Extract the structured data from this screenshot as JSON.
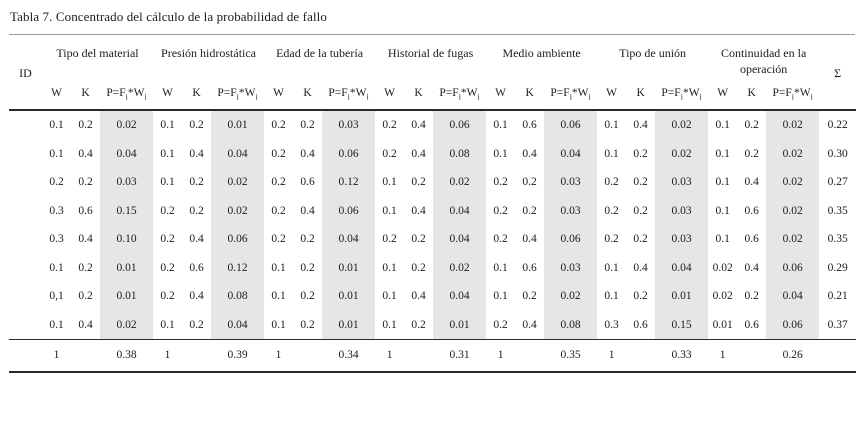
{
  "title": "Tabla 7. Concentrado del cálculo de la probabilidad de fallo",
  "table": {
    "id_header": "ID",
    "sum_header": "Σ",
    "sub_w": "W",
    "sub_k": "K",
    "p_label_parts": [
      "P=F",
      "i",
      "*W",
      "i"
    ],
    "groups": [
      "Tipo del material",
      "Presión hidrostática",
      "Edad de la tubería",
      "Historial de fugas",
      "Medio ambiente",
      "Tipo de unión",
      "Continuidad en la operación"
    ],
    "rows": [
      {
        "groups": [
          [
            "0.1",
            "0.2",
            "0.02"
          ],
          [
            "0.1",
            "0.2",
            "0.01"
          ],
          [
            "0.2",
            "0.2",
            "0.03"
          ],
          [
            "0.2",
            "0.4",
            "0.06"
          ],
          [
            "0.1",
            "0.6",
            "0.06"
          ],
          [
            "0.1",
            "0.4",
            "0.02"
          ],
          [
            "0.1",
            "0.2",
            "0.02"
          ]
        ],
        "sum": "0.22"
      },
      {
        "groups": [
          [
            "0.1",
            "0.4",
            "0.04"
          ],
          [
            "0.1",
            "0.4",
            "0.04"
          ],
          [
            "0.2",
            "0.4",
            "0.06"
          ],
          [
            "0.2",
            "0.4",
            "0.08"
          ],
          [
            "0.1",
            "0.4",
            "0.04"
          ],
          [
            "0.1",
            "0.2",
            "0.02"
          ],
          [
            "0.1",
            "0.2",
            "0.02"
          ]
        ],
        "sum": "0.30"
      },
      {
        "groups": [
          [
            "0.2",
            "0.2",
            "0.03"
          ],
          [
            "0.1",
            "0.2",
            "0.02"
          ],
          [
            "0.2",
            "0.6",
            "0.12"
          ],
          [
            "0.1",
            "0.2",
            "0.02"
          ],
          [
            "0.2",
            "0.2",
            "0.03"
          ],
          [
            "0.2",
            "0.2",
            "0.03"
          ],
          [
            "0.1",
            "0.4",
            "0.02"
          ]
        ],
        "sum": "0.27"
      },
      {
        "groups": [
          [
            "0.3",
            "0.6",
            "0.15"
          ],
          [
            "0.2",
            "0.2",
            "0.02"
          ],
          [
            "0.2",
            "0.4",
            "0.06"
          ],
          [
            "0.1",
            "0.4",
            "0.04"
          ],
          [
            "0.2",
            "0.2",
            "0.03"
          ],
          [
            "0.2",
            "0.2",
            "0.03"
          ],
          [
            "0.1",
            "0.6",
            "0.02"
          ]
        ],
        "sum": "0.35"
      },
      {
        "groups": [
          [
            "0.3",
            "0.4",
            "0.10"
          ],
          [
            "0.2",
            "0.4",
            "0.06"
          ],
          [
            "0.2",
            "0.2",
            "0.04"
          ],
          [
            "0.2",
            "0.2",
            "0.04"
          ],
          [
            "0.2",
            "0.4",
            "0.06"
          ],
          [
            "0.2",
            "0.2",
            "0.03"
          ],
          [
            "0.1",
            "0.6",
            "0.02"
          ]
        ],
        "sum": "0.35"
      },
      {
        "groups": [
          [
            "0.1",
            "0.2",
            "0.01"
          ],
          [
            "0.2",
            "0.6",
            "0.12"
          ],
          [
            "0.1",
            "0.2",
            "0.01"
          ],
          [
            "0.1",
            "0.2",
            "0.02"
          ],
          [
            "0.1",
            "0.6",
            "0.03"
          ],
          [
            "0.1",
            "0.4",
            "0.04"
          ],
          [
            "0.02",
            "0.4",
            "0.06"
          ]
        ],
        "sum": "0.29"
      },
      {
        "groups": [
          [
            "0,1",
            "0.2",
            "0.01"
          ],
          [
            "0.2",
            "0.4",
            "0.08"
          ],
          [
            "0.1",
            "0.2",
            "0.01"
          ],
          [
            "0.1",
            "0.4",
            "0.04"
          ],
          [
            "0.1",
            "0.2",
            "0.02"
          ],
          [
            "0.1",
            "0.2",
            "0.01"
          ],
          [
            "0.02",
            "0.2",
            "0.04"
          ]
        ],
        "sum": "0.21"
      },
      {
        "groups": [
          [
            "0.1",
            "0.4",
            "0.02"
          ],
          [
            "0.1",
            "0.2",
            "0.04"
          ],
          [
            "0.1",
            "0.2",
            "0.01"
          ],
          [
            "0.1",
            "0.2",
            "0.01"
          ],
          [
            "0.2",
            "0.4",
            "0.08"
          ],
          [
            "0.3",
            "0.6",
            "0.15"
          ],
          [
            "0.01",
            "0.6",
            "0.06"
          ]
        ],
        "sum": "0.37"
      }
    ],
    "totals": {
      "w": "1",
      "p_sums": [
        "0.38",
        "0.39",
        "0.34",
        "0.31",
        "0.35",
        "0.33",
        "0.26"
      ]
    }
  },
  "colors": {
    "shade": "#e6e6e6",
    "rule_dark": "#2a2a2a",
    "rule_light": "#9c9c9c"
  }
}
